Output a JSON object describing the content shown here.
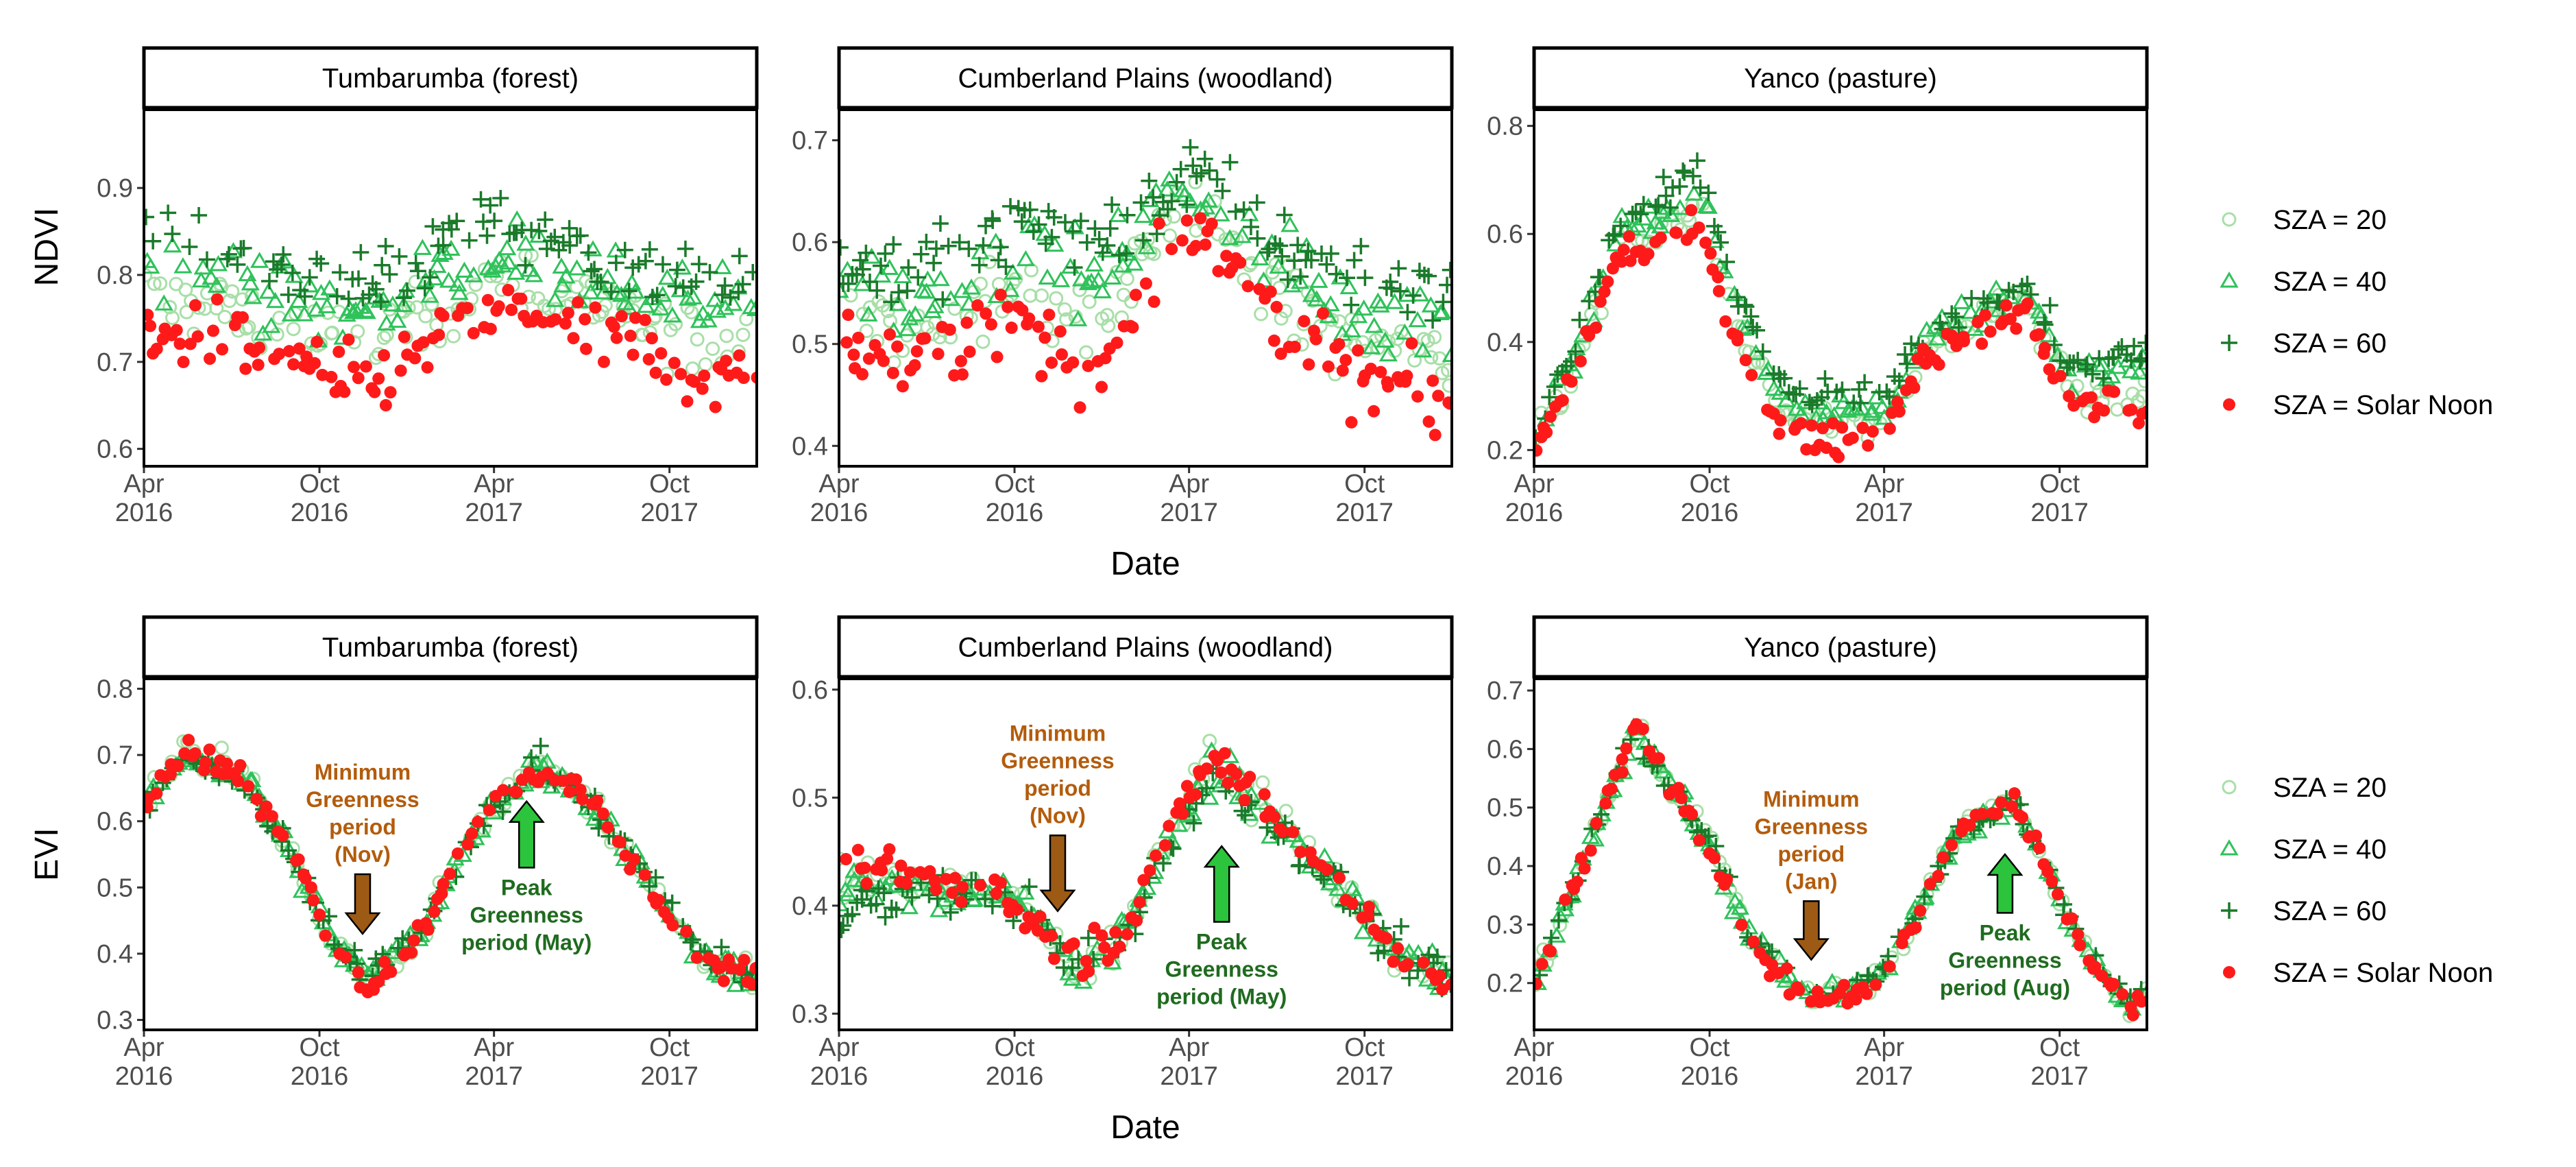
{
  "chart_data": {
    "type": "scatter",
    "x_ticks": [
      {
        "date": "2016-04-01",
        "line1": "Apr",
        "line2": "2016"
      },
      {
        "date": "2016-10-01",
        "line1": "Oct",
        "line2": "2016"
      },
      {
        "date": "2017-04-01",
        "line1": "Apr",
        "line2": "2017"
      },
      {
        "date": "2017-10-01",
        "line1": "Oct",
        "line2": "2017"
      }
    ],
    "x_range": [
      "2016-04-01",
      "2017-12-31"
    ],
    "xlabel": "Date",
    "legend": [
      {
        "label": "SZA = 20",
        "marker": "circle-open",
        "color": "#a8dfa8"
      },
      {
        "label": "SZA = 40",
        "marker": "triangle-open",
        "color": "#2fc25b"
      },
      {
        "label": "SZA = 60",
        "marker": "plus",
        "color": "#1a7a2a"
      },
      {
        "label": "SZA = Solar Noon",
        "marker": "circle-filled",
        "color": "#ff1a1a"
      }
    ],
    "colors": {
      "down_arrow": "#9c5a14",
      "up_arrow": "#2cc43c",
      "min_text": "#b35c0c",
      "peak_text": "#1f6b1f"
    },
    "rows": [
      {
        "ylabel": "NDVI",
        "panels": [
          {
            "title": "Tumbarumba (forest)",
            "ylim": [
              0.58,
              0.99
            ],
            "yticks": [
              0.6,
              0.7,
              0.8,
              0.9
            ],
            "trend": {
              "sza60": [
                [
                  "2016-04-01",
                  0.85
                ],
                [
                  "2016-06-15",
                  0.83
                ],
                [
                  "2016-09-01",
                  0.8
                ],
                [
                  "2016-11-15",
                  0.79
                ],
                [
                  "2017-01-15",
                  0.82
                ],
                [
                  "2017-04-01",
                  0.86
                ],
                [
                  "2017-06-15",
                  0.84
                ],
                [
                  "2017-09-01",
                  0.8
                ],
                [
                  "2017-11-15",
                  0.79
                ],
                [
                  "2017-12-31",
                  0.8
                ]
              ],
              "noon": [
                [
                  "2016-04-01",
                  0.72
                ],
                [
                  "2016-06-15",
                  0.73
                ],
                [
                  "2016-09-01",
                  0.7
                ],
                [
                  "2016-11-15",
                  0.67
                ],
                [
                  "2017-01-15",
                  0.72
                ],
                [
                  "2017-04-01",
                  0.76
                ],
                [
                  "2017-06-15",
                  0.74
                ],
                [
                  "2017-09-01",
                  0.72
                ],
                [
                  "2017-11-15",
                  0.68
                ],
                [
                  "2017-12-31",
                  0.69
                ]
              ]
            },
            "spread": 0.04
          },
          {
            "title": "Cumberland Plains (woodland)",
            "ylim": [
              0.38,
              0.73
            ],
            "yticks": [
              0.4,
              0.5,
              0.6,
              0.7
            ],
            "trend": {
              "sza60": [
                [
                  "2016-04-01",
                  0.58
                ],
                [
                  "2016-06-15",
                  0.57
                ],
                [
                  "2016-09-01",
                  0.59
                ],
                [
                  "2016-10-15",
                  0.63
                ],
                [
                  "2017-01-01",
                  0.6
                ],
                [
                  "2017-04-01",
                  0.67
                ],
                [
                  "2017-06-15",
                  0.61
                ],
                [
                  "2017-09-01",
                  0.57
                ],
                [
                  "2017-11-15",
                  0.56
                ],
                [
                  "2017-12-31",
                  0.56
                ]
              ],
              "noon": [
                [
                  "2016-04-01",
                  0.5
                ],
                [
                  "2016-06-15",
                  0.48
                ],
                [
                  "2016-09-01",
                  0.52
                ],
                [
                  "2016-10-15",
                  0.53
                ],
                [
                  "2016-12-15",
                  0.46
                ],
                [
                  "2017-04-01",
                  0.63
                ],
                [
                  "2017-06-15",
                  0.54
                ],
                [
                  "2017-09-01",
                  0.47
                ],
                [
                  "2017-11-15",
                  0.45
                ],
                [
                  "2017-12-31",
                  0.44
                ]
              ]
            },
            "spread": 0.035
          },
          {
            "title": "Yanco (pasture)",
            "ylim": [
              0.17,
              0.83
            ],
            "yticks": [
              0.2,
              0.4,
              0.6,
              0.8
            ],
            "trend": {
              "sza60": [
                [
                  "2016-04-01",
                  0.23
                ],
                [
                  "2016-05-15",
                  0.4
                ],
                [
                  "2016-07-01",
                  0.63
                ],
                [
                  "2016-08-15",
                  0.66
                ],
                [
                  "2016-09-20",
                  0.72
                ],
                [
                  "2016-11-01",
                  0.48
                ],
                [
                  "2016-12-15",
                  0.31
                ],
                [
                  "2017-02-15",
                  0.3
                ],
                [
                  "2017-04-01",
                  0.29
                ],
                [
                  "2017-05-15",
                  0.42
                ],
                [
                  "2017-07-01",
                  0.46
                ],
                [
                  "2017-08-25",
                  0.51
                ],
                [
                  "2017-10-15",
                  0.35
                ],
                [
                  "2017-12-31",
                  0.38
                ]
              ],
              "noon": [
                [
                  "2016-04-01",
                  0.2
                ],
                [
                  "2016-05-15",
                  0.35
                ],
                [
                  "2016-07-01",
                  0.57
                ],
                [
                  "2016-08-15",
                  0.58
                ],
                [
                  "2016-09-20",
                  0.62
                ],
                [
                  "2016-11-01",
                  0.4
                ],
                [
                  "2016-12-15",
                  0.24
                ],
                [
                  "2017-02-15",
                  0.22
                ],
                [
                  "2017-04-01",
                  0.23
                ],
                [
                  "2017-05-15",
                  0.38
                ],
                [
                  "2017-07-01",
                  0.41
                ],
                [
                  "2017-08-25",
                  0.46
                ],
                [
                  "2017-10-15",
                  0.28
                ],
                [
                  "2017-12-31",
                  0.28
                ]
              ]
            },
            "spread": 0.03
          }
        ]
      },
      {
        "ylabel": "EVI",
        "panels": [
          {
            "title": "Tumbarumba (forest)",
            "ylim": [
              0.285,
              0.815
            ],
            "yticks": [
              0.3,
              0.4,
              0.5,
              0.6,
              0.7,
              0.8
            ],
            "trend": {
              "sza60": [
                [
                  "2016-04-01",
                  0.62
                ],
                [
                  "2016-05-15",
                  0.7
                ],
                [
                  "2016-07-15",
                  0.66
                ],
                [
                  "2016-09-01",
                  0.55
                ],
                [
                  "2016-10-15",
                  0.42
                ],
                [
                  "2016-11-20",
                  0.37
                ],
                [
                  "2017-01-15",
                  0.44
                ],
                [
                  "2017-03-15",
                  0.59
                ],
                [
                  "2017-05-15",
                  0.69
                ],
                [
                  "2017-07-01",
                  0.64
                ],
                [
                  "2017-09-01",
                  0.53
                ],
                [
                  "2017-11-01",
                  0.4
                ],
                [
                  "2017-12-31",
                  0.36
                ]
              ],
              "noon": [
                [
                  "2016-04-01",
                  0.63
                ],
                [
                  "2016-05-15",
                  0.71
                ],
                [
                  "2016-07-15",
                  0.67
                ],
                [
                  "2016-09-01",
                  0.56
                ],
                [
                  "2016-10-15",
                  0.41
                ],
                [
                  "2016-11-20",
                  0.35
                ],
                [
                  "2017-01-15",
                  0.43
                ],
                [
                  "2017-03-15",
                  0.6
                ],
                [
                  "2017-05-15",
                  0.68
                ],
                [
                  "2017-07-01",
                  0.65
                ],
                [
                  "2017-09-01",
                  0.52
                ],
                [
                  "2017-11-01",
                  0.39
                ],
                [
                  "2017-12-31",
                  0.36
                ]
              ]
            },
            "spread": 0.02,
            "annotations": [
              {
                "kind": "min",
                "lines": [
                  "Minimum",
                  "Greenness",
                  "period",
                  "(Nov)"
                ],
                "date": "2016-11-15",
                "y_top": 0.52,
                "y_bottom": 0.43
              },
              {
                "kind": "peak",
                "lines": [
                  "Peak",
                  "Greenness",
                  "period (May)"
                ],
                "date": "2017-05-05",
                "y_top": 0.63,
                "y_bottom": 0.53
              }
            ]
          },
          {
            "title": "Cumberland Plains (woodland)",
            "ylim": [
              0.285,
              0.61
            ],
            "yticks": [
              0.3,
              0.4,
              0.5,
              0.6
            ],
            "trend": {
              "sza60": [
                [
                  "2016-04-01",
                  0.4
                ],
                [
                  "2016-06-15",
                  0.41
                ],
                [
                  "2016-09-01",
                  0.41
                ],
                [
                  "2016-10-15",
                  0.4
                ],
                [
                  "2016-12-01",
                  0.34
                ],
                [
                  "2017-01-15",
                  0.36
                ],
                [
                  "2017-03-15",
                  0.46
                ],
                [
                  "2017-04-20",
                  0.52
                ],
                [
                  "2017-06-15",
                  0.49
                ],
                [
                  "2017-09-01",
                  0.42
                ],
                [
                  "2017-11-01",
                  0.36
                ],
                [
                  "2017-12-31",
                  0.33
                ]
              ],
              "noon": [
                [
                  "2016-04-01",
                  0.44
                ],
                [
                  "2016-06-15",
                  0.43
                ],
                [
                  "2016-09-01",
                  0.42
                ],
                [
                  "2016-10-15",
                  0.39
                ],
                [
                  "2016-12-01",
                  0.35
                ],
                [
                  "2017-01-15",
                  0.37
                ],
                [
                  "2017-03-15",
                  0.47
                ],
                [
                  "2017-04-20",
                  0.54
                ],
                [
                  "2017-06-15",
                  0.5
                ],
                [
                  "2017-09-01",
                  0.42
                ],
                [
                  "2017-11-01",
                  0.36
                ],
                [
                  "2017-12-31",
                  0.33
                ]
              ]
            },
            "spread": 0.018,
            "annotations": [
              {
                "kind": "min",
                "lines": [
                  "Minimum",
                  "Greenness",
                  "period",
                  "(Nov)"
                ],
                "date": "2016-11-15",
                "y_top": 0.465,
                "y_bottom": 0.395
              },
              {
                "kind": "peak",
                "lines": [
                  "Peak",
                  "Greenness",
                  "period (May)"
                ],
                "date": "2017-05-05",
                "y_top": 0.455,
                "y_bottom": 0.385
              }
            ]
          },
          {
            "title": "Yanco (pasture)",
            "ylim": [
              0.12,
              0.72
            ],
            "yticks": [
              0.2,
              0.3,
              0.4,
              0.5,
              0.6,
              0.7
            ],
            "trend": {
              "sza60": [
                [
                  "2016-04-01",
                  0.19
                ],
                [
                  "2016-06-01",
                  0.45
                ],
                [
                  "2016-07-15",
                  0.63
                ],
                [
                  "2016-08-15",
                  0.55
                ],
                [
                  "2016-10-01",
                  0.44
                ],
                [
                  "2016-11-15",
                  0.27
                ],
                [
                  "2017-01-15",
                  0.18
                ],
                [
                  "2017-03-15",
                  0.2
                ],
                [
                  "2017-04-15",
                  0.26
                ],
                [
                  "2017-06-15",
                  0.45
                ],
                [
                  "2017-08-15",
                  0.51
                ],
                [
                  "2017-10-15",
                  0.3
                ],
                [
                  "2017-12-15",
                  0.16
                ],
                [
                  "2017-12-31",
                  0.19
                ]
              ],
              "noon": [
                [
                  "2016-04-01",
                  0.19
                ],
                [
                  "2016-06-01",
                  0.44
                ],
                [
                  "2016-07-15",
                  0.64
                ],
                [
                  "2016-08-15",
                  0.56
                ],
                [
                  "2016-10-01",
                  0.44
                ],
                [
                  "2016-11-15",
                  0.26
                ],
                [
                  "2017-01-15",
                  0.17
                ],
                [
                  "2017-03-15",
                  0.19
                ],
                [
                  "2017-04-15",
                  0.25
                ],
                [
                  "2017-06-15",
                  0.46
                ],
                [
                  "2017-08-15",
                  0.52
                ],
                [
                  "2017-10-15",
                  0.29
                ],
                [
                  "2017-12-15",
                  0.15
                ],
                [
                  "2017-12-31",
                  0.18
                ]
              ]
            },
            "spread": 0.02,
            "annotations": [
              {
                "kind": "min",
                "lines": [
                  "Minimum",
                  "Greenness",
                  "period",
                  "(Jan)"
                ],
                "date": "2017-01-15",
                "y_top": 0.34,
                "y_bottom": 0.24
              },
              {
                "kind": "peak",
                "lines": [
                  "Peak",
                  "Greenness",
                  "period (Aug)"
                ],
                "date": "2017-08-05",
                "y_top": 0.42,
                "y_bottom": 0.32
              }
            ]
          }
        ]
      }
    ]
  }
}
